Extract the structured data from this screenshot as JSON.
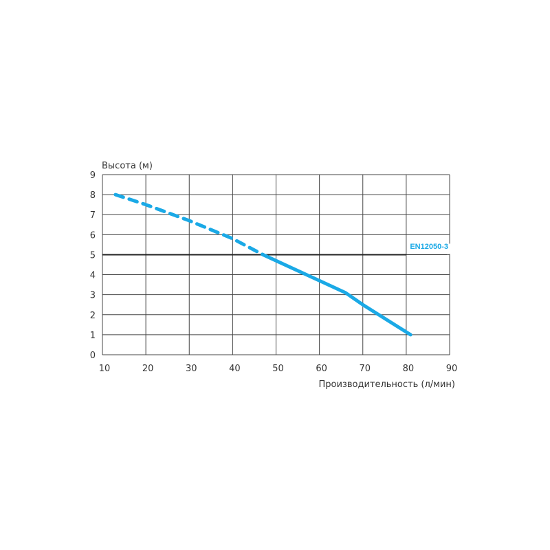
{
  "chart_data": {
    "type": "line",
    "title": "",
    "xlabel": "Производительность (л/мин)",
    "ylabel": "Высота (м)",
    "xlim": [
      10,
      90
    ],
    "ylim": [
      0,
      9
    ],
    "x_ticks": [
      "10",
      "20",
      "30",
      "40",
      "50",
      "60",
      "70",
      "80",
      "90"
    ],
    "y_ticks": [
      "0",
      "1",
      "2",
      "3",
      "4",
      "5",
      "6",
      "7",
      "8",
      "9"
    ],
    "grid": true,
    "series": [
      {
        "style": "dashed",
        "color": "#1aa9e6",
        "x": [
          13,
          20,
          30,
          40,
          47
        ],
        "y": [
          8,
          7.5,
          6.7,
          5.8,
          5.0
        ]
      },
      {
        "style": "solid",
        "color": "#1aa9e6",
        "x": [
          47,
          50,
          60,
          66,
          70,
          81
        ],
        "y": [
          5.0,
          4.7,
          3.7,
          3.1,
          2.5,
          1.0
        ]
      }
    ],
    "reference_line": {
      "y": 5,
      "label": "EN12050-3",
      "label_color": "#1aa9e6",
      "color": "#222222"
    }
  }
}
